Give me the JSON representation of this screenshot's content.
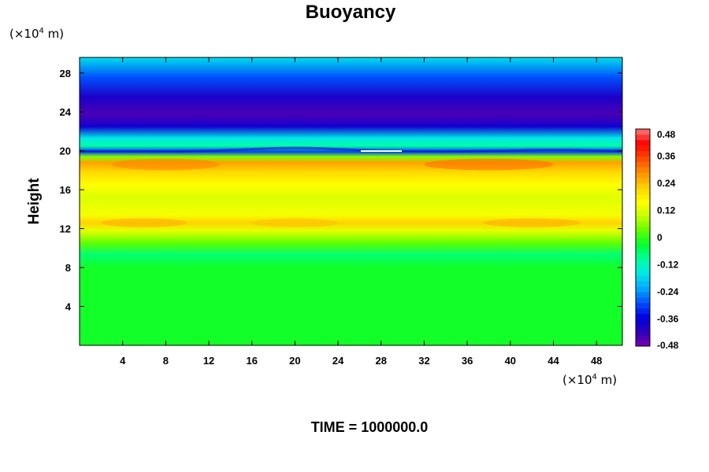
{
  "chart_data": {
    "type": "heatmap",
    "title": "Buoyancy",
    "ylabel": "Height",
    "xlabel": "",
    "x_unit": {
      "prefix": "(×10",
      "exp": "4",
      "suffix": " m)"
    },
    "y_unit": {
      "prefix": "(×10",
      "exp": "4",
      "suffix": " m)"
    },
    "xlim": [
      0,
      50.4
    ],
    "ylim": [
      0,
      29.6
    ],
    "x_ticks": [
      4,
      8,
      12,
      16,
      20,
      24,
      28,
      32,
      36,
      40,
      44,
      48
    ],
    "y_ticks": [
      4,
      8,
      12,
      16,
      20,
      24,
      28
    ],
    "colorbar": {
      "min": -0.48,
      "max": 0.48,
      "levels": 40,
      "tick_labels": [
        "0.48",
        "0.36",
        "0.24",
        "0.12",
        "0",
        "-0.12",
        "-0.24",
        "-0.36",
        "-0.48"
      ],
      "colors": [
        "#7a00b0",
        "#2d00b8",
        "#0000e0",
        "#0050ff",
        "#00a8ff",
        "#00e8e8",
        "#00ffa0",
        "#00ff30",
        "#60ff00",
        "#c8ff00",
        "#ffff00",
        "#ffd000",
        "#ff9000",
        "#ff4800",
        "#ff0000",
        "#ff7a7a"
      ]
    },
    "vertical_profile": [
      {
        "height": 0.0,
        "value": -0.02
      },
      {
        "height": 8.0,
        "value": -0.02
      },
      {
        "height": 9.3,
        "value": -0.07
      },
      {
        "height": 10.5,
        "value": 0.03
      },
      {
        "height": 11.8,
        "value": 0.13
      },
      {
        "height": 12.6,
        "value": 0.22
      },
      {
        "height": 13.4,
        "value": 0.15
      },
      {
        "height": 15.2,
        "value": 0.12
      },
      {
        "height": 16.5,
        "value": 0.16
      },
      {
        "height": 17.8,
        "value": 0.21
      },
      {
        "height": 18.8,
        "value": 0.27
      },
      {
        "height": 19.4,
        "value": 0.05
      },
      {
        "height": 19.9,
        "value": -0.3
      },
      {
        "height": 20.5,
        "value": -0.1
      },
      {
        "height": 21.3,
        "value": -0.16
      },
      {
        "height": 22.5,
        "value": -0.38
      },
      {
        "height": 23.8,
        "value": -0.44
      },
      {
        "height": 25.5,
        "value": -0.39
      },
      {
        "height": 27.5,
        "value": -0.29
      },
      {
        "height": 29.6,
        "value": -0.17
      }
    ],
    "grid": false,
    "colorbar_position": "right"
  },
  "footer": {
    "time_label": "TIME = 1000000.0"
  }
}
